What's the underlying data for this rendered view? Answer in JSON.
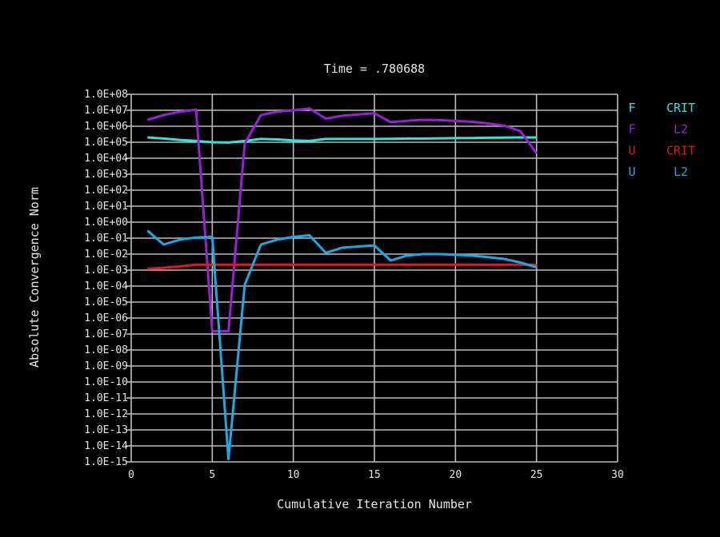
{
  "chart_data": {
    "type": "line",
    "title": "Time = .780688",
    "xlabel": "Cumulative Iteration Number",
    "ylabel": "Absolute Convergence Norm",
    "xlim": [
      0,
      30
    ],
    "xticks": [
      0,
      5,
      10,
      15,
      20,
      25,
      30
    ],
    "y_scale": "log",
    "ylim_exponent": [
      -15,
      8
    ],
    "ytick_labels": [
      "1.0E+08",
      "1.0E+07",
      "1.0E+06",
      "1.0E+05",
      "1.0E+04",
      "1.0E+03",
      "1.0E+02",
      "1.0E+01",
      "1.0E+00",
      "1.0E-01",
      "1.0E-02",
      "1.0E-03",
      "1.0E-04",
      "1.0E-05",
      "1.0E-06",
      "1.0E-07",
      "1.0E-08",
      "1.0E-09",
      "1.0E-10",
      "1.0E-11",
      "1.0E-12",
      "1.0E-13",
      "1.0E-14",
      "1.0E-15"
    ],
    "grid": true,
    "legend_position": "right",
    "series": [
      {
        "name": "F CRIT",
        "legend_left": "F",
        "legend_right": "CRIT",
        "color": "#2ee6e0",
        "points": [
          [
            1,
            200000
          ],
          [
            2,
            170000
          ],
          [
            3,
            140000
          ],
          [
            4,
            120000
          ],
          [
            5,
            100000
          ],
          [
            6,
            95000
          ],
          [
            7,
            120000
          ],
          [
            8,
            160000
          ],
          [
            9,
            150000
          ],
          [
            10,
            130000
          ],
          [
            11,
            120000
          ],
          [
            12,
            160000
          ],
          [
            13,
            160000
          ],
          [
            14,
            160000
          ],
          [
            15,
            160000
          ],
          [
            16,
            165000
          ],
          [
            17,
            170000
          ],
          [
            18,
            170000
          ],
          [
            19,
            175000
          ],
          [
            20,
            180000
          ],
          [
            21,
            185000
          ],
          [
            22,
            190000
          ],
          [
            23,
            195000
          ],
          [
            24,
            200000
          ],
          [
            25,
            200000
          ]
        ]
      },
      {
        "name": "F L2",
        "legend_left": "F",
        "legend_right": "L2",
        "color": "#9b1fd6",
        "points": [
          [
            1,
            2500000
          ],
          [
            2,
            5000000
          ],
          [
            3,
            8000000
          ],
          [
            4,
            11000000
          ],
          [
            5,
            1.5e-07
          ],
          [
            6,
            1.5e-07
          ],
          [
            7,
            80000
          ],
          [
            8,
            5000000
          ],
          [
            9,
            8000000
          ],
          [
            10,
            10000000
          ],
          [
            11,
            13000000
          ],
          [
            12,
            3000000
          ],
          [
            13,
            4500000
          ],
          [
            14,
            5500000
          ],
          [
            15,
            6500000
          ],
          [
            16,
            1800000
          ],
          [
            17,
            2200000
          ],
          [
            18,
            2500000
          ],
          [
            19,
            2400000
          ],
          [
            20,
            2200000
          ],
          [
            21,
            1900000
          ],
          [
            22,
            1500000
          ],
          [
            23,
            1100000
          ],
          [
            24,
            500000
          ],
          [
            25,
            20000
          ]
        ]
      },
      {
        "name": "U CRIT",
        "legend_left": "U",
        "legend_right": "CRIT",
        "color": "#e8161b",
        "points": [
          [
            1,
            0.0012
          ],
          [
            2,
            0.0014
          ],
          [
            3,
            0.0017
          ],
          [
            4,
            0.0022
          ],
          [
            5,
            0.0022
          ],
          [
            10,
            0.0022
          ],
          [
            15,
            0.0022
          ],
          [
            20,
            0.0022
          ],
          [
            25,
            0.0022
          ]
        ]
      },
      {
        "name": "U L2",
        "legend_left": "U",
        "legend_right": "L2",
        "color": "#1aa8e6",
        "points": [
          [
            1,
            0.3
          ],
          [
            2,
            0.04
          ],
          [
            3,
            0.08
          ],
          [
            4,
            0.11
          ],
          [
            5,
            0.12
          ],
          [
            6,
            1.5e-15
          ],
          [
            7,
            0.00012
          ],
          [
            8,
            0.04
          ],
          [
            9,
            0.08
          ],
          [
            10,
            0.12
          ],
          [
            11,
            0.15
          ],
          [
            12,
            0.012
          ],
          [
            13,
            0.025
          ],
          [
            14,
            0.03
          ],
          [
            15,
            0.035
          ],
          [
            16,
            0.004
          ],
          [
            17,
            0.008
          ],
          [
            18,
            0.01
          ],
          [
            19,
            0.01
          ],
          [
            20,
            0.009
          ],
          [
            21,
            0.008
          ],
          [
            22,
            0.0065
          ],
          [
            23,
            0.005
          ],
          [
            24,
            0.003
          ],
          [
            25,
            0.0015
          ]
        ]
      }
    ]
  }
}
